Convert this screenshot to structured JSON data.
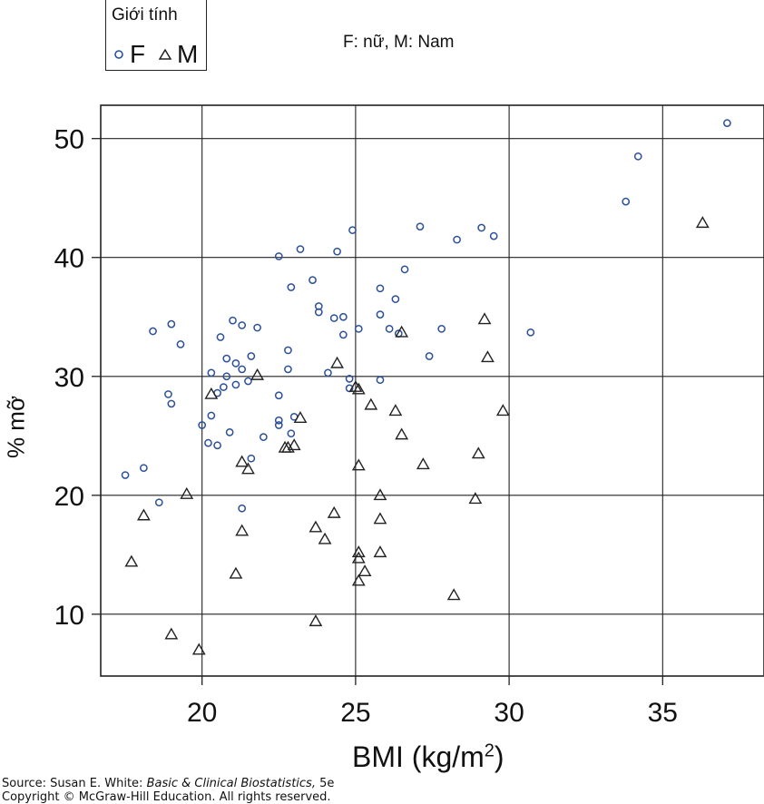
{
  "legend": {
    "title": "Giới tính",
    "items": [
      {
        "symbol": "circle",
        "label": "F",
        "color": "#2b4f9b"
      },
      {
        "symbol": "triangle",
        "label": "M",
        "color": "#222222"
      }
    ]
  },
  "note": "F: nữ, M: Nam",
  "source": {
    "prefix": "Source: Susan E. White: ",
    "book": "Basic & Clinical Biostatistics,",
    "suffix": " 5e",
    "copyright": "Copyright © McGraw-Hill Education. All rights reserved."
  },
  "chart_data": {
    "type": "scatter",
    "xlabel": "BMI (kg/m²)",
    "xlabel_base": "BMI (kg/m",
    "xlabel_sup": "2",
    "xlabel_end": ")",
    "ylabel": "% mỡ",
    "xlim": [
      16.7,
      38.3
    ],
    "ylim": [
      4.8,
      52.8
    ],
    "xticks": [
      20,
      25,
      30,
      35
    ],
    "yticks": [
      10,
      20,
      30,
      40,
      50
    ],
    "grid": true,
    "legend_placement": "top-left, outside plot",
    "series": [
      {
        "name": "F",
        "marker": "circle",
        "color": "#2b4f9b",
        "points": [
          [
            17.5,
            21.7
          ],
          [
            18.1,
            22.3
          ],
          [
            18.4,
            33.8
          ],
          [
            18.6,
            19.4
          ],
          [
            18.9,
            28.5
          ],
          [
            19.0,
            27.7
          ],
          [
            19.0,
            34.4
          ],
          [
            19.3,
            32.7
          ],
          [
            20.0,
            25.9
          ],
          [
            20.2,
            24.4
          ],
          [
            20.3,
            30.3
          ],
          [
            20.3,
            26.7
          ],
          [
            20.5,
            24.2
          ],
          [
            20.5,
            28.6
          ],
          [
            20.6,
            33.3
          ],
          [
            20.7,
            29.1
          ],
          [
            20.8,
            31.5
          ],
          [
            20.8,
            30.0
          ],
          [
            20.9,
            25.3
          ],
          [
            21.0,
            34.7
          ],
          [
            21.1,
            31.1
          ],
          [
            21.1,
            29.3
          ],
          [
            21.3,
            34.3
          ],
          [
            21.3,
            30.6
          ],
          [
            21.3,
            18.9
          ],
          [
            21.5,
            29.6
          ],
          [
            21.6,
            31.7
          ],
          [
            21.6,
            23.1
          ],
          [
            21.8,
            34.1
          ],
          [
            22.0,
            24.9
          ],
          [
            22.5,
            40.1
          ],
          [
            22.5,
            28.4
          ],
          [
            22.5,
            26.3
          ],
          [
            22.5,
            25.9
          ],
          [
            22.8,
            32.2
          ],
          [
            22.8,
            30.6
          ],
          [
            22.9,
            37.5
          ],
          [
            22.9,
            25.2
          ],
          [
            23.0,
            26.6
          ],
          [
            23.2,
            40.7
          ],
          [
            23.6,
            38.1
          ],
          [
            23.8,
            35.9
          ],
          [
            23.8,
            35.4
          ],
          [
            24.1,
            30.3
          ],
          [
            24.3,
            34.9
          ],
          [
            24.4,
            40.5
          ],
          [
            24.6,
            35.0
          ],
          [
            24.6,
            33.5
          ],
          [
            24.8,
            29.8
          ],
          [
            24.8,
            29.0
          ],
          [
            24.9,
            42.3
          ],
          [
            25.1,
            34.0
          ],
          [
            25.8,
            37.4
          ],
          [
            25.8,
            35.2
          ],
          [
            25.8,
            29.7
          ],
          [
            26.1,
            34.0
          ],
          [
            26.3,
            36.5
          ],
          [
            26.4,
            33.6
          ],
          [
            26.6,
            39.0
          ],
          [
            27.1,
            42.6
          ],
          [
            27.4,
            31.7
          ],
          [
            27.8,
            34.0
          ],
          [
            28.3,
            41.5
          ],
          [
            29.1,
            42.5
          ],
          [
            29.5,
            41.8
          ],
          [
            30.7,
            33.7
          ],
          [
            33.8,
            44.7
          ],
          [
            34.2,
            48.5
          ],
          [
            37.1,
            51.3
          ]
        ]
      },
      {
        "name": "M",
        "marker": "triangle",
        "color": "#222222",
        "points": [
          [
            17.7,
            14.4
          ],
          [
            18.1,
            18.3
          ],
          [
            19.0,
            8.3
          ],
          [
            19.5,
            20.1
          ],
          [
            19.9,
            7.0
          ],
          [
            20.3,
            28.5
          ],
          [
            21.1,
            13.4
          ],
          [
            21.3,
            22.8
          ],
          [
            21.3,
            17.0
          ],
          [
            21.5,
            22.2
          ],
          [
            21.8,
            30.1
          ],
          [
            22.7,
            24.0
          ],
          [
            22.8,
            24.0
          ],
          [
            23.0,
            24.2
          ],
          [
            23.2,
            26.5
          ],
          [
            23.7,
            17.3
          ],
          [
            23.7,
            9.4
          ],
          [
            24.0,
            16.3
          ],
          [
            24.3,
            18.5
          ],
          [
            24.4,
            31.1
          ],
          [
            25.0,
            29.1
          ],
          [
            25.1,
            28.9
          ],
          [
            25.1,
            22.5
          ],
          [
            25.1,
            15.2
          ],
          [
            25.1,
            14.7
          ],
          [
            25.1,
            12.8
          ],
          [
            25.3,
            13.6
          ],
          [
            25.5,
            27.6
          ],
          [
            25.8,
            20.0
          ],
          [
            25.8,
            18.0
          ],
          [
            25.8,
            15.2
          ],
          [
            26.3,
            27.1
          ],
          [
            26.5,
            33.7
          ],
          [
            26.5,
            25.1
          ],
          [
            27.2,
            22.6
          ],
          [
            28.2,
            11.6
          ],
          [
            28.9,
            19.7
          ],
          [
            29.0,
            23.5
          ],
          [
            29.2,
            34.8
          ],
          [
            29.3,
            31.6
          ],
          [
            29.8,
            27.1
          ],
          [
            36.3,
            42.9
          ]
        ]
      }
    ]
  }
}
